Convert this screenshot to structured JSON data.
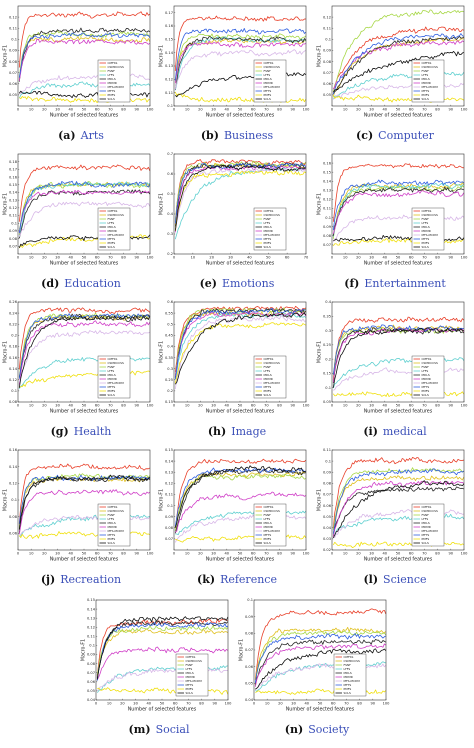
{
  "series_styles": [
    {
      "name": "CMFSS",
      "color": "#e8402a"
    },
    {
      "name": "CSMDCCSS",
      "color": "#e0c020"
    },
    {
      "name": "FSNF",
      "color": "#a8d848"
    },
    {
      "name": "LFFS",
      "color": "#60d0d0"
    },
    {
      "name": "MDLS",
      "color": "#2a2a2a"
    },
    {
      "name": "MDMR",
      "color": "#d040c8"
    },
    {
      "name": "MFS-MCDM",
      "color": "#d8b8e8"
    },
    {
      "name": "MFTS",
      "color": "#3060e0"
    },
    {
      "name": "PMFS",
      "color": "#f0e010"
    },
    {
      "name": "SCLS",
      "color": "#101010"
    }
  ],
  "chart_data": [
    {
      "type": "line",
      "panel_label": "(a)",
      "name": "Arts",
      "xlabel": "Number of selected features",
      "ylabel": "Macro-F1",
      "xlim": [
        0,
        100
      ],
      "ylim": [
        0.04,
        0.13
      ],
      "x_ticks": [
        0,
        10,
        20,
        30,
        40,
        50,
        60,
        70,
        80,
        90,
        100
      ],
      "y_ticks": [
        0.05,
        0.06,
        0.07,
        0.08,
        0.09,
        0.1,
        0.11,
        0.12
      ],
      "legend_loc": "lower-right",
      "finals": [
        0.122,
        0.1,
        0.104,
        0.06,
        0.108,
        0.098,
        0.066,
        0.104,
        0.045,
        0.05
      ],
      "rises": [
        4,
        5,
        5,
        20,
        8,
        6,
        15,
        6,
        25,
        25
      ]
    },
    {
      "type": "line",
      "panel_label": "(b)",
      "name": "Business",
      "xlabel": "Number of selected features",
      "ylabel": "Macro-F1",
      "xlim": [
        0,
        100
      ],
      "ylim": [
        0.1,
        0.175
      ],
      "x_ticks": [
        0,
        10,
        20,
        30,
        40,
        50,
        60,
        70,
        80,
        90,
        100
      ],
      "y_ticks": [
        0.1,
        0.11,
        0.12,
        0.13,
        0.14,
        0.15,
        0.16,
        0.17
      ],
      "legend_loc": "lower-right",
      "finals": [
        0.165,
        0.148,
        0.152,
        0.15,
        0.15,
        0.146,
        0.14,
        0.156,
        0.104,
        0.123
      ],
      "rises": [
        4,
        6,
        6,
        10,
        8,
        6,
        12,
        5,
        20,
        30
      ]
    },
    {
      "type": "line",
      "panel_label": "(c)",
      "name": "Computer",
      "xlabel": "Number of selected features",
      "ylabel": "Macro-F1",
      "xlim": [
        0,
        100
      ],
      "ylim": [
        0.04,
        0.13
      ],
      "x_ticks": [
        0,
        10,
        20,
        30,
        40,
        50,
        60,
        70,
        80,
        90,
        100
      ],
      "y_ticks": [
        0.05,
        0.06,
        0.07,
        0.08,
        0.09,
        0.1,
        0.11,
        0.12
      ],
      "legend_loc": "lower-right",
      "finals": [
        0.11,
        0.1,
        0.125,
        0.07,
        0.102,
        0.098,
        0.06,
        0.104,
        0.045,
        0.09
      ],
      "rises": [
        30,
        30,
        25,
        40,
        35,
        30,
        45,
        30,
        50,
        60
      ]
    },
    {
      "type": "line",
      "panel_label": "(d)",
      "name": "Education",
      "xlabel": "Number of selected features",
      "ylabel": "Macro-F1",
      "xlim": [
        0,
        100
      ],
      "ylim": [
        0.06,
        0.19
      ],
      "x_ticks": [
        0,
        10,
        20,
        30,
        40,
        50,
        60,
        70,
        80,
        90,
        100
      ],
      "y_ticks": [
        0.07,
        0.08,
        0.09,
        0.1,
        0.11,
        0.12,
        0.13,
        0.14,
        0.15,
        0.16,
        0.17,
        0.18
      ],
      "legend_loc": "lower-right",
      "finals": [
        0.172,
        0.15,
        0.15,
        0.15,
        0.14,
        0.14,
        0.125,
        0.15,
        0.08,
        0.082
      ],
      "rises": [
        6,
        8,
        8,
        10,
        10,
        8,
        15,
        8,
        25,
        30
      ]
    },
    {
      "type": "line",
      "panel_label": "(e)",
      "name": "Emotions",
      "xlabel": "Number of selected features",
      "ylabel": "Macro-F1",
      "xlim": [
        0,
        70
      ],
      "ylim": [
        0.2,
        0.7
      ],
      "x_ticks": [
        0,
        10,
        20,
        30,
        40,
        50,
        60,
        70
      ],
      "y_ticks": [
        0.2,
        0.3,
        0.4,
        0.5,
        0.6,
        0.7
      ],
      "legend_loc": "lower-right",
      "finals": [
        0.66,
        0.64,
        0.65,
        0.63,
        0.64,
        0.63,
        0.62,
        0.64,
        0.6,
        0.63
      ],
      "rises": [
        4,
        4,
        4,
        18,
        5,
        5,
        8,
        4,
        6,
        6
      ]
    },
    {
      "type": "line",
      "panel_label": "(f)",
      "name": "Entertainment",
      "xlabel": "Number of selected features",
      "ylabel": "Macro-F1",
      "xlim": [
        0,
        100
      ],
      "ylim": [
        0.06,
        0.17
      ],
      "x_ticks": [
        0,
        10,
        20,
        30,
        40,
        50,
        60,
        70,
        80,
        90,
        100
      ],
      "y_ticks": [
        0.07,
        0.08,
        0.09,
        0.1,
        0.11,
        0.12,
        0.13,
        0.14,
        0.15,
        0.16
      ],
      "legend_loc": "lower-right",
      "finals": [
        0.158,
        0.135,
        0.132,
        0.135,
        0.13,
        0.125,
        0.1,
        0.138,
        0.075,
        0.077
      ],
      "rises": [
        6,
        8,
        8,
        10,
        10,
        10,
        15,
        8,
        30,
        30
      ]
    },
    {
      "type": "line",
      "panel_label": "(g)",
      "name": "Health",
      "xlabel": "Number of selected features",
      "ylabel": "Macro-F1",
      "xlim": [
        0,
        100
      ],
      "ylim": [
        0.08,
        0.26
      ],
      "x_ticks": [
        0,
        10,
        20,
        30,
        40,
        50,
        60,
        70,
        80,
        90,
        100
      ],
      "y_ticks": [
        0.08,
        0.1,
        0.12,
        0.14,
        0.16,
        0.18,
        0.2,
        0.22,
        0.24,
        0.26
      ],
      "legend_loc": "lower-right",
      "finals": [
        0.245,
        0.232,
        0.235,
        0.16,
        0.232,
        0.22,
        0.205,
        0.235,
        0.135,
        0.23
      ],
      "rises": [
        6,
        8,
        8,
        25,
        10,
        10,
        15,
        8,
        40,
        15
      ]
    },
    {
      "type": "line",
      "panel_label": "(h)",
      "name": "Image",
      "xlabel": "Number of selected features",
      "ylabel": "Macro-F1",
      "xlim": [
        0,
        100
      ],
      "ylim": [
        0.15,
        0.6
      ],
      "x_ticks": [
        0,
        10,
        20,
        30,
        40,
        50,
        60,
        70,
        80,
        90,
        100
      ],
      "y_ticks": [
        0.15,
        0.2,
        0.25,
        0.3,
        0.35,
        0.4,
        0.45,
        0.5,
        0.55,
        0.6
      ],
      "legend_loc": "lower-right",
      "finals": [
        0.57,
        0.55,
        0.56,
        0.54,
        0.56,
        0.55,
        0.52,
        0.56,
        0.5,
        0.54
      ],
      "rises": [
        8,
        8,
        8,
        12,
        10,
        10,
        15,
        10,
        15,
        25
      ]
    },
    {
      "type": "line",
      "panel_label": "(i)",
      "name": "medical",
      "xlabel": "Number of selected features",
      "ylabel": "Macro-F1",
      "xlim": [
        0,
        100
      ],
      "ylim": [
        0.05,
        0.4
      ],
      "x_ticks": [
        0,
        10,
        20,
        30,
        40,
        50,
        60,
        70,
        80,
        90,
        100
      ],
      "y_ticks": [
        0.05,
        0.1,
        0.15,
        0.2,
        0.25,
        0.3,
        0.35,
        0.4
      ],
      "legend_loc": "lower-right",
      "finals": [
        0.34,
        0.31,
        0.3,
        0.2,
        0.3,
        0.3,
        0.16,
        0.31,
        0.08,
        0.3
      ],
      "rises": [
        6,
        6,
        6,
        25,
        8,
        8,
        20,
        6,
        40,
        12
      ]
    },
    {
      "type": "line",
      "panel_label": "(j)",
      "name": "Recreation",
      "xlabel": "Number of selected features",
      "ylabel": "Macro-F1",
      "xlim": [
        0,
        100
      ],
      "ylim": [
        0.04,
        0.16
      ],
      "x_ticks": [
        0,
        10,
        20,
        30,
        40,
        50,
        60,
        70,
        80,
        90,
        100
      ],
      "y_ticks": [
        0.06,
        0.08,
        0.1,
        0.12,
        0.14,
        0.16
      ],
      "legend_loc": "lower-right",
      "finals": [
        0.14,
        0.125,
        0.128,
        0.08,
        0.125,
        0.11,
        0.08,
        0.126,
        0.06,
        0.126
      ],
      "rises": [
        5,
        6,
        6,
        30,
        8,
        8,
        20,
        6,
        40,
        8
      ]
    },
    {
      "type": "line",
      "panel_label": "(k)",
      "name": "Reference",
      "xlabel": "Number of selected features",
      "ylabel": "Macro-F1",
      "xlim": [
        0,
        100
      ],
      "ylim": [
        0.06,
        0.15
      ],
      "x_ticks": [
        0,
        10,
        20,
        30,
        40,
        50,
        60,
        70,
        80,
        90,
        100
      ],
      "y_ticks": [
        0.07,
        0.08,
        0.09,
        0.1,
        0.11,
        0.12,
        0.13,
        0.14,
        0.15
      ],
      "legend_loc": "lower-right",
      "finals": [
        0.14,
        0.128,
        0.126,
        0.095,
        0.13,
        0.11,
        0.09,
        0.132,
        0.072,
        0.132
      ],
      "rises": [
        8,
        10,
        10,
        30,
        15,
        15,
        25,
        10,
        50,
        15
      ]
    },
    {
      "type": "line",
      "panel_label": "(l)",
      "name": "Science",
      "xlabel": "Number of selected features",
      "ylabel": "Macro-F1",
      "xlim": [
        0,
        100
      ],
      "ylim": [
        0.02,
        0.11
      ],
      "x_ticks": [
        0,
        10,
        20,
        30,
        40,
        50,
        60,
        70,
        80,
        90,
        100
      ],
      "y_ticks": [
        0.02,
        0.03,
        0.04,
        0.05,
        0.06,
        0.07,
        0.08,
        0.09,
        0.1,
        0.11
      ],
      "legend_loc": "lower-right",
      "finals": [
        0.1,
        0.085,
        0.092,
        0.05,
        0.075,
        0.08,
        0.055,
        0.09,
        0.025,
        0.08
      ],
      "rises": [
        8,
        10,
        10,
        30,
        15,
        15,
        25,
        10,
        40,
        30
      ]
    },
    {
      "type": "line",
      "panel_label": "(m)",
      "name": "Social",
      "xlabel": "Number of selected features",
      "ylabel": "Macro-F1",
      "xlim": [
        0,
        100
      ],
      "ylim": [
        0.04,
        0.15
      ],
      "x_ticks": [
        0,
        10,
        20,
        30,
        40,
        50,
        60,
        70,
        80,
        90,
        100
      ],
      "y_ticks": [
        0.04,
        0.05,
        0.06,
        0.07,
        0.08,
        0.09,
        0.1,
        0.11,
        0.12,
        0.13,
        0.14,
        0.15
      ],
      "legend_loc": "lower-right",
      "finals": [
        0.125,
        0.115,
        0.118,
        0.075,
        0.125,
        0.095,
        0.072,
        0.122,
        0.05,
        0.13
      ],
      "rises": [
        6,
        8,
        8,
        25,
        10,
        10,
        20,
        8,
        40,
        12
      ]
    },
    {
      "type": "line",
      "panel_label": "(n)",
      "name": "Society",
      "xlabel": "Number of selected features",
      "ylabel": "Macro-F1",
      "xlim": [
        0,
        100
      ],
      "ylim": [
        0.04,
        0.1
      ],
      "x_ticks": [
        0,
        10,
        20,
        30,
        40,
        50,
        60,
        70,
        80,
        90,
        100
      ],
      "y_ticks": [
        0.04,
        0.05,
        0.06,
        0.07,
        0.08,
        0.09,
        0.1
      ],
      "legend_loc": "lower-right",
      "finals": [
        0.092,
        0.082,
        0.08,
        0.062,
        0.075,
        0.072,
        0.06,
        0.078,
        0.045,
        0.07
      ],
      "rises": [
        8,
        10,
        10,
        30,
        15,
        15,
        25,
        10,
        40,
        30
      ]
    }
  ]
}
